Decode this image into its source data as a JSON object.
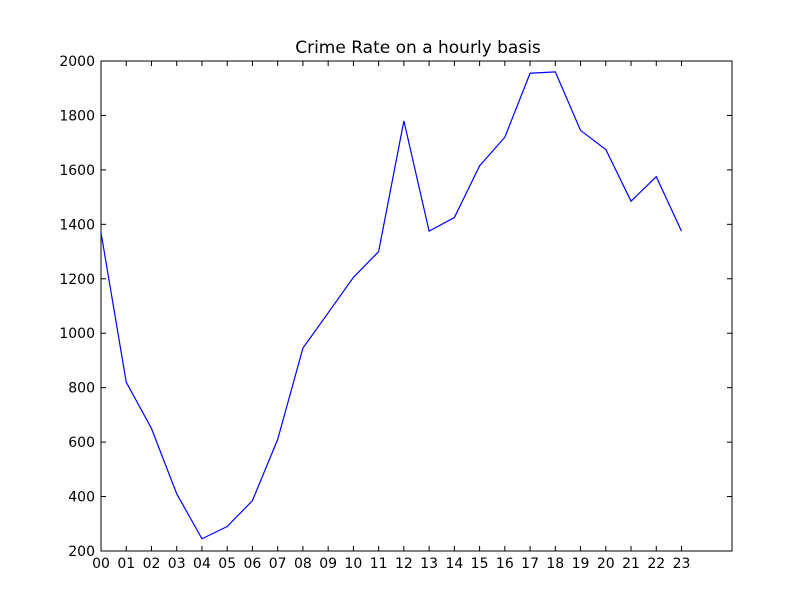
{
  "chart_data": {
    "type": "line",
    "title": "Crime Rate on a hourly basis",
    "xlabel": "",
    "ylabel": "",
    "x": [
      "00",
      "01",
      "02",
      "03",
      "04",
      "05",
      "06",
      "07",
      "08",
      "09",
      "10",
      "11",
      "12",
      "13",
      "14",
      "15",
      "16",
      "17",
      "18",
      "19",
      "20",
      "21",
      "22",
      "23"
    ],
    "series": [
      {
        "values": [
          1370,
          820,
          650,
          410,
          245,
          290,
          385,
          610,
          945,
          1075,
          1205,
          1300,
          1780,
          1375,
          1425,
          1615,
          1720,
          1955,
          1960,
          1745,
          1675,
          1485,
          1575,
          1375
        ],
        "color": "#0000ff"
      }
    ],
    "xlim": [
      0,
      25
    ],
    "ylim": [
      200,
      2000
    ],
    "yticks": [
      200,
      400,
      600,
      800,
      1000,
      1200,
      1400,
      1600,
      1800,
      2000
    ],
    "grid": false,
    "legend": "none"
  }
}
